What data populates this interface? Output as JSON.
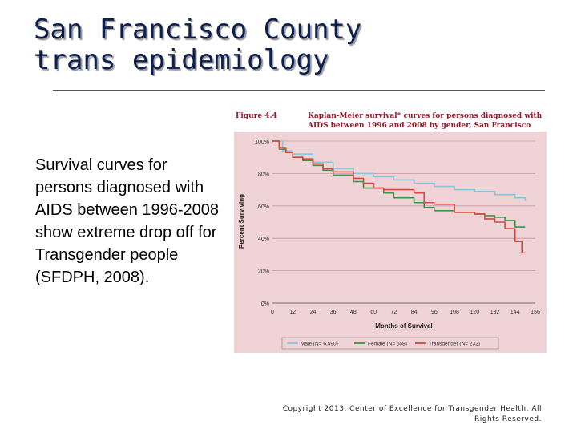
{
  "slide": {
    "title_line1": "San Francisco County",
    "title_line2": "trans epidemiology",
    "body_text": "Survival curves for persons diagnosed with AIDS between 1996-2008 show extreme drop off for Transgender people (SFDPH, 2008).",
    "copyright": "Copyright 2013. Center of Excellence for Transgender Health. All Rights Reserved."
  },
  "figure": {
    "label": "Figure 4.4",
    "caption": "Kaplan-Meier survival* curves for persons diagnosed with AIDS between 1996 and 2008 by gender, San Francisco"
  },
  "colors": {
    "plot_background": "#f0d3d6",
    "grid": "#c49aa0",
    "male": "#8fc3dc",
    "female": "#3c9444",
    "transgender": "#cf4b42",
    "caption": "#8b1e2a",
    "title": "#0d1f4e"
  },
  "chart_data": {
    "type": "line",
    "xlabel": "Months of Survival",
    "ylabel": "Percent Surviving",
    "xlim": [
      0,
      150
    ],
    "ylim": [
      0,
      100
    ],
    "x_ticks": [
      0,
      12,
      24,
      36,
      48,
      60,
      72,
      84,
      96,
      108,
      120,
      132,
      144,
      156
    ],
    "y_ticks": [
      "0%",
      "20%",
      "40%",
      "60%",
      "80%",
      "100%"
    ],
    "grid": true,
    "legend_position": "bottom",
    "series": [
      {
        "name": "Male (N= 6,590)",
        "x": [
          0,
          6,
          12,
          24,
          36,
          48,
          60,
          72,
          84,
          96,
          108,
          120,
          132,
          144,
          150
        ],
        "y": [
          100,
          94,
          92,
          87,
          83,
          80,
          78,
          76,
          74,
          72,
          70,
          69,
          67,
          65,
          63
        ]
      },
      {
        "name": "Female (N= 558)",
        "x": [
          0,
          4,
          8,
          12,
          18,
          24,
          30,
          36,
          48,
          54,
          60,
          66,
          72,
          84,
          90,
          96,
          108,
          120,
          126,
          132,
          138,
          144,
          150
        ],
        "y": [
          100,
          95,
          93,
          90,
          88,
          85,
          82,
          79,
          75,
          71,
          71,
          68,
          65,
          62,
          59,
          57,
          56,
          55,
          54,
          53,
          51,
          47,
          47
        ]
      },
      {
        "name": "Transgender (N= 232)",
        "x": [
          0,
          4,
          8,
          12,
          18,
          24,
          30,
          36,
          48,
          54,
          60,
          66,
          72,
          84,
          90,
          96,
          108,
          120,
          126,
          132,
          138,
          144,
          148,
          150
        ],
        "y": [
          100,
          96,
          93,
          90,
          89,
          86,
          83,
          81,
          77,
          74,
          71,
          70,
          70,
          68,
          62,
          61,
          56,
          55,
          52,
          50,
          46,
          38,
          31,
          31
        ]
      }
    ]
  }
}
